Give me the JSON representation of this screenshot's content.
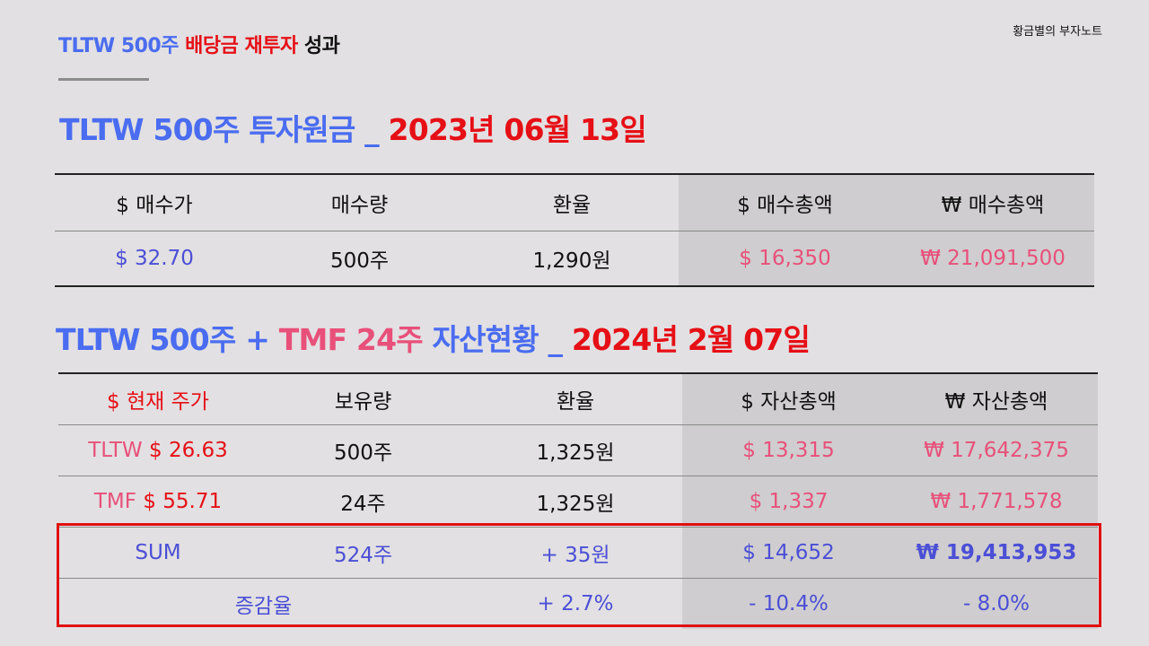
{
  "slide": {
    "title": {
      "part1": "TLTW 500주 ",
      "part2": "배당금 재투자",
      "part3": " 성과"
    },
    "author": "황금별의 부자노트"
  },
  "section1": {
    "heading": {
      "part1": "TLTW 500주 투자원금 _ ",
      "part2": "2023년 06월 13일"
    },
    "headers": [
      "$ 매수가",
      "매수량",
      "환율",
      "$ 매수총액",
      "₩ 매수총액"
    ],
    "row": [
      "$ 32.70",
      "500주",
      "1,290원",
      "$ 16,350",
      "₩ 21,091,500"
    ]
  },
  "section2": {
    "heading": {
      "part1": "TLTW 500주 + ",
      "part2": "TMF 24주",
      "part3": " 자산현황 _ ",
      "part4": "2024년 2월 07일"
    },
    "headers": [
      "$ 현재 주가",
      "보유량",
      "환율",
      "$ 자산총액",
      "₩ 자산총액"
    ],
    "rows": [
      {
        "ticker": "TLTW",
        "price": "$ 26.63",
        "qty": "500주",
        "fx": "1,325원",
        "usd": "$ 13,315",
        "krw": "₩ 17,642,375"
      },
      {
        "ticker": "TMF",
        "price": "$ 55.71",
        "qty": "24주",
        "fx": "1,325원",
        "usd": "$ 1,337",
        "krw": "₩ 1,771,578"
      }
    ],
    "sum": {
      "label": "SUM",
      "qty": "524주",
      "fx": "+ 35원",
      "usd": "$ 14,652",
      "krw": "₩ 19,413,953"
    },
    "change": {
      "label": "증감율",
      "fx": "+ 2.7%",
      "usd": "- 10.4%",
      "krw": "- 8.0%"
    }
  },
  "colors": {
    "blue": "#4a6cf0",
    "red": "#e60f16",
    "pink": "#e8507a",
    "box": "#e01010"
  }
}
